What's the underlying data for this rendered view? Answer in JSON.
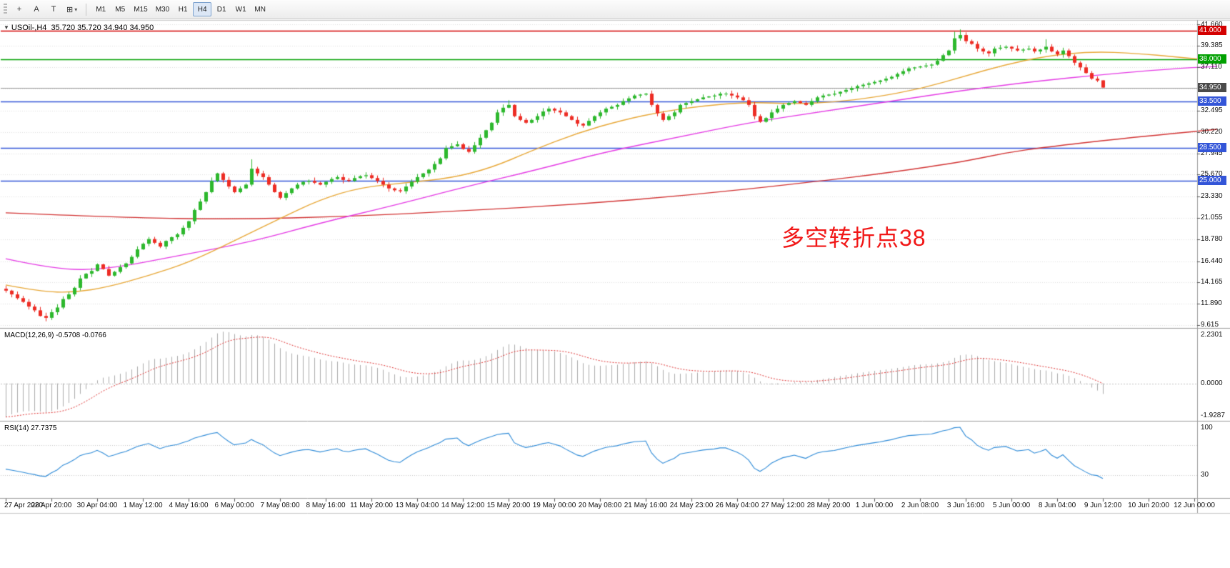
{
  "toolbar": {
    "tools": [
      {
        "name": "crosshair",
        "glyph": "+"
      },
      {
        "name": "text",
        "glyph": "A"
      },
      {
        "name": "label",
        "glyph": "T"
      },
      {
        "name": "draw",
        "glyph": "⊞",
        "caret": "▾"
      }
    ],
    "timeframes": [
      "M1",
      "M5",
      "M15",
      "M30",
      "H1",
      "H4",
      "D1",
      "W1",
      "MN"
    ],
    "active_timeframe": "H4"
  },
  "chart_ui": {
    "dropdown_glyph": "▼",
    "symbol": "USOil-,H4",
    "ohlc": "35.720 35.720 34.940 34.950",
    "annotation": {
      "text": "多空转折点38",
      "color": "#F11717"
    }
  },
  "indicators": {
    "macd_label": "MACD(12,26,9) -0.5708 -0.0766",
    "rsi_label": "RSI(14) 27.7375"
  },
  "chart_data": [
    {
      "type": "candlestick",
      "title": "USOil-,H4",
      "ohlc_display": "35.720 35.720 34.940 34.950",
      "ylim": [
        9.4,
        42.0
      ],
      "bars_per_label": 8,
      "x_labels": [
        "27 Apr 2020",
        "28 Apr 20:00",
        "30 Apr 04:00",
        "1 May 12:00",
        "4 May 16:00",
        "6 May 00:00",
        "7 May 08:00",
        "8 May 16:00",
        "11 May 20:00",
        "13 May 04:00",
        "14 May 12:00",
        "15 May 20:00",
        "19 May 00:00",
        "20 May 08:00",
        "21 May 16:00",
        "24 May 23:00",
        "26 May 04:00",
        "27 May 12:00",
        "28 May 20:00",
        "1 Jun 00:00",
        "2 Jun 08:00",
        "3 Jun 16:00",
        "5 Jun 00:00",
        "8 Jun 04:00",
        "9 Jun 12:00",
        "10 Jun 20:00",
        "12 Jun 00:00"
      ],
      "y_ticks": [
        {
          "label": "41.660",
          "price": 41.66
        },
        {
          "label": "39.385",
          "price": 39.385
        },
        {
          "label": "37.110",
          "price": 37.11
        },
        {
          "label": "32.495",
          "price": 32.495
        },
        {
          "label": "30.220",
          "price": 30.22
        },
        {
          "label": "27.945",
          "price": 27.945
        },
        {
          "label": "25.670",
          "price": 25.67
        },
        {
          "label": "23.330",
          "price": 23.33
        },
        {
          "label": "21.055",
          "price": 21.055
        },
        {
          "label": "18.780",
          "price": 18.78
        },
        {
          "label": "16.440",
          "price": 16.44
        },
        {
          "label": "14.165",
          "price": 14.165
        },
        {
          "label": "11.890",
          "price": 11.89
        },
        {
          "label": "9.615",
          "price": 9.615
        }
      ],
      "grid_extra": [
        34.835
      ],
      "first_open": 13.5,
      "closes": [
        13.3,
        12.9,
        12.5,
        12.1,
        11.6,
        11.2,
        10.6,
        10.4,
        11.0,
        11.5,
        12.4,
        12.9,
        13.6,
        14.6,
        15.1,
        15.4,
        16.1,
        15.6,
        14.9,
        15.3,
        15.8,
        16.2,
        16.9,
        17.7,
        18.3,
        18.8,
        18.4,
        18.0,
        18.6,
        19.0,
        19.3,
        20.0,
        20.7,
        21.9,
        22.8,
        23.8,
        25.0,
        25.8,
        25.1,
        24.4,
        23.8,
        24.2,
        24.6,
        26.3,
        25.8,
        25.4,
        24.6,
        23.8,
        23.2,
        23.7,
        24.2,
        24.6,
        24.9,
        25.0,
        24.8,
        24.6,
        24.9,
        25.2,
        25.4,
        25.1,
        25.0,
        25.3,
        25.5,
        25.6,
        25.3,
        25.0,
        24.6,
        24.2,
        24.0,
        23.9,
        24.4,
        24.9,
        25.4,
        25.8,
        26.2,
        26.8,
        27.4,
        28.5,
        28.7,
        28.9,
        28.4,
        28.1,
        28.8,
        29.6,
        30.4,
        31.2,
        32.3,
        32.8,
        33.1,
        31.9,
        31.5,
        31.2,
        31.5,
        31.9,
        32.4,
        32.7,
        32.5,
        32.3,
        31.9,
        31.5,
        31.1,
        30.9,
        31.4,
        31.9,
        32.3,
        32.7,
        32.9,
        33.1,
        33.5,
        33.8,
        34.1,
        34.2,
        34.3,
        33.1,
        32.2,
        31.5,
        31.9,
        32.3,
        33.1,
        33.3,
        33.5,
        33.7,
        33.9,
        34.0,
        34.1,
        34.3,
        34.3,
        34.1,
        33.9,
        33.6,
        33.1,
        31.9,
        31.3,
        31.7,
        32.3,
        32.7,
        33.1,
        33.3,
        33.5,
        33.3,
        33.1,
        33.5,
        33.9,
        34.1,
        34.2,
        34.3,
        34.5,
        34.7,
        34.9,
        35.1,
        35.25,
        35.4,
        35.55,
        35.7,
        35.9,
        36.1,
        36.4,
        36.7,
        37.0,
        37.1,
        37.2,
        37.3,
        37.4,
        37.8,
        38.4,
        38.9,
        40.2,
        40.55,
        39.9,
        39.6,
        39.1,
        38.8,
        38.6,
        39.1,
        39.2,
        39.3,
        39.1,
        38.9,
        39.0,
        39.1,
        38.8,
        39.0,
        39.3,
        38.8,
        38.5,
        38.9,
        38.3,
        37.6,
        37.1,
        36.5,
        35.9,
        35.7,
        34.95
      ],
      "overrides": {
        "43": {
          "high": 27.3
        },
        "88": {
          "high": 33.6
        },
        "166": {
          "high": 40.9
        },
        "167": {
          "high": 41.15
        },
        "182": {
          "high": 40.1
        },
        "192": {
          "open": 35.72,
          "high": 35.72,
          "low": 34.94,
          "close": 34.95
        }
      },
      "colors": {
        "up": "#2DB82D",
        "down": "#ED2C24"
      },
      "hlines": [
        {
          "price": 41.0,
          "color": "#D40000"
        },
        {
          "price": 38.0,
          "color": "#00A000"
        },
        {
          "price": 33.5,
          "color": "#3355D8"
        },
        {
          "price": 28.5,
          "color": "#3355D8"
        },
        {
          "price": 25.0,
          "color": "#3355D8"
        }
      ],
      "current_price": 34.95,
      "current_price_color": "#9A9A9A",
      "markers": [
        {
          "label": "41.000",
          "price": 41.0,
          "bg": "#D40000"
        },
        {
          "label": "38.000",
          "price": 38.0,
          "bg": "#00A000"
        },
        {
          "label": "34.950",
          "price": 34.95,
          "bg": "#4A4A4A"
        },
        {
          "label": "33.500",
          "price": 33.5,
          "bg": "#3355D8"
        },
        {
          "label": "28.500",
          "price": 28.5,
          "bg": "#3355D8"
        },
        {
          "label": "25.000",
          "price": 25.0,
          "bg": "#3355D8"
        }
      ],
      "overlays": {
        "ma_fast": {
          "name": "MA fast (gold)",
          "color": "#E8A838",
          "points": [
            [
              0,
              13.9
            ],
            [
              6,
              13.2
            ],
            [
              12,
              13.1
            ],
            [
              18,
              13.7
            ],
            [
              25,
              14.9
            ],
            [
              32,
              16.3
            ],
            [
              40,
              18.6
            ],
            [
              48,
              21.0
            ],
            [
              55,
              23.0
            ],
            [
              62,
              24.3
            ],
            [
              70,
              24.8
            ],
            [
              78,
              25.3
            ],
            [
              85,
              26.4
            ],
            [
              92,
              28.2
            ],
            [
              100,
              30.1
            ],
            [
              108,
              31.5
            ],
            [
              115,
              32.4
            ],
            [
              122,
              33.0
            ],
            [
              130,
              33.4
            ],
            [
              138,
              33.2
            ],
            [
              145,
              33.4
            ],
            [
              152,
              33.9
            ],
            [
              160,
              34.8
            ],
            [
              168,
              36.2
            ],
            [
              175,
              37.4
            ],
            [
              182,
              38.3
            ],
            [
              190,
              38.8
            ],
            [
              198,
              38.6
            ],
            [
              205,
              38.2
            ],
            [
              212,
              37.8
            ]
          ]
        },
        "ma_mid": {
          "name": "MA mid (magenta)",
          "color": "#E53BE5",
          "points": [
            [
              0,
              16.7
            ],
            [
              9,
              15.5
            ],
            [
              18,
              15.6
            ],
            [
              30,
              17.0
            ],
            [
              43,
              18.5
            ],
            [
              55,
              20.5
            ],
            [
              68,
              22.4
            ],
            [
              80,
              24.3
            ],
            [
              93,
              26.2
            ],
            [
              105,
              28.1
            ],
            [
              118,
              29.7
            ],
            [
              130,
              31.2
            ],
            [
              143,
              32.4
            ],
            [
              155,
              33.5
            ],
            [
              168,
              34.7
            ],
            [
              180,
              35.6
            ],
            [
              193,
              36.4
            ],
            [
              205,
              37.0
            ],
            [
              212,
              37.2
            ]
          ]
        },
        "ma_slow": {
          "name": "MA slow (red)",
          "color": "#D23333",
          "points": [
            [
              0,
              21.6
            ],
            [
              20,
              21.1
            ],
            [
              40,
              20.9
            ],
            [
              60,
              21.2
            ],
            [
              80,
              21.8
            ],
            [
              100,
              22.5
            ],
            [
              120,
              23.5
            ],
            [
              140,
              24.8
            ],
            [
              155,
              25.9
            ],
            [
              168,
              27.1
            ],
            [
              175,
              28.0
            ],
            [
              182,
              28.6
            ],
            [
              195,
              29.5
            ],
            [
              212,
              30.5
            ]
          ]
        }
      }
    },
    {
      "type": "bar",
      "name": "MACD(12,26,9)",
      "values_display": "-0.5708 -0.0766",
      "params": [
        12,
        26,
        9
      ],
      "derived_from": "closes",
      "y_ticks": [
        "2.2301",
        "0.0000",
        "-1.9287"
      ],
      "hist_color": "#ABABAB",
      "signal_color": "#E03232"
    },
    {
      "type": "line",
      "name": "RSI(14)",
      "value_display": "27.7375",
      "period": 14,
      "derived_from": "closes",
      "ylim": [
        0,
        100
      ],
      "levels": [
        70,
        30
      ],
      "y_tick_labels": [
        "100",
        "30"
      ],
      "line_color": "#2E8BD8"
    }
  ]
}
